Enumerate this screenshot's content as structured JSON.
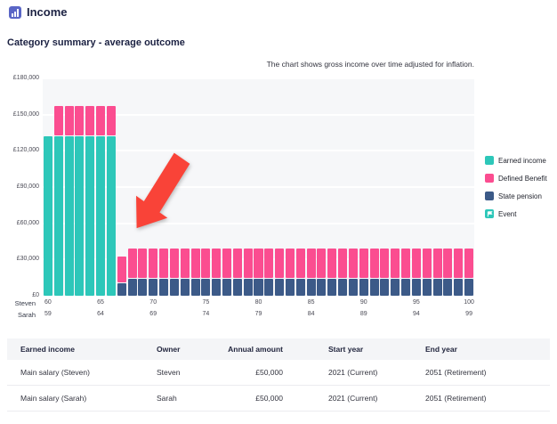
{
  "header": {
    "title": "Income"
  },
  "subtitle": "Category summary - average outcome",
  "chart": {
    "note": "The chart shows gross income over time adjusted for inflation."
  },
  "chart_data": {
    "type": "bar",
    "stacked": true,
    "title": "Category summary - average outcome",
    "ylim": [
      0,
      180000
    ],
    "ytick_step": 30000,
    "ytick_labels": [
      "£180,000",
      "£150,000",
      "£120,000",
      "£90,000",
      "£60,000",
      "£30,000",
      "£0"
    ],
    "grid": "horizontal-white-on-gray",
    "legend_position": "right",
    "x_primary_label": "Steven",
    "x_secondary_label": "Sarah",
    "ages_steven": [
      60,
      61,
      62,
      63,
      64,
      65,
      66,
      67,
      68,
      69,
      70,
      71,
      72,
      73,
      74,
      75,
      76,
      77,
      78,
      79,
      80,
      81,
      82,
      83,
      84,
      85,
      86,
      87,
      88,
      89,
      90,
      91,
      92,
      93,
      94,
      95,
      96,
      97,
      98,
      99,
      100
    ],
    "ages_sarah": [
      59,
      60,
      61,
      62,
      63,
      64,
      65,
      66,
      67,
      68,
      69,
      70,
      71,
      72,
      73,
      74,
      75,
      76,
      77,
      78,
      79,
      80,
      81,
      82,
      83,
      84,
      85,
      86,
      87,
      88,
      89,
      90,
      91,
      92,
      93,
      94,
      95,
      96,
      97,
      98,
      99
    ],
    "xticks_steven": [
      60,
      65,
      70,
      75,
      80,
      85,
      90,
      95,
      100
    ],
    "xticks_sarah": [
      59,
      64,
      69,
      74,
      79,
      84,
      89,
      94,
      99
    ],
    "series": [
      {
        "name": "Earned income",
        "color": "#2dc7b9",
        "values": [
          133000,
          133000,
          133000,
          133000,
          133000,
          133000,
          133000,
          0,
          0,
          0,
          0,
          0,
          0,
          0,
          0,
          0,
          0,
          0,
          0,
          0,
          0,
          0,
          0,
          0,
          0,
          0,
          0,
          0,
          0,
          0,
          0,
          0,
          0,
          0,
          0,
          0,
          0,
          0,
          0,
          0,
          0
        ]
      },
      {
        "name": "State pension",
        "color": "#3c5a88",
        "values": [
          0,
          0,
          0,
          0,
          0,
          0,
          0,
          11000,
          15000,
          15000,
          15000,
          15000,
          15000,
          15000,
          15000,
          15000,
          15000,
          15000,
          15000,
          15000,
          15000,
          15000,
          15000,
          15000,
          15000,
          15000,
          15000,
          15000,
          15000,
          15000,
          15000,
          15000,
          15000,
          15000,
          15000,
          15000,
          15000,
          15000,
          15000,
          15000,
          15000
        ]
      },
      {
        "name": "Defined Benefit",
        "color": "#fb4d90",
        "values": [
          0,
          25000,
          25000,
          25000,
          25000,
          25000,
          25000,
          22000,
          25000,
          25000,
          25000,
          25000,
          25000,
          25000,
          25000,
          25000,
          25000,
          25000,
          25000,
          25000,
          25000,
          25000,
          25000,
          25000,
          25000,
          25000,
          25000,
          25000,
          25000,
          25000,
          25000,
          25000,
          25000,
          25000,
          25000,
          25000,
          25000,
          25000,
          25000,
          25000,
          25000
        ]
      }
    ]
  },
  "legend": {
    "items": [
      {
        "label": "Earned income",
        "color": "#2dc7b9",
        "kind": "square"
      },
      {
        "label": "Defined Benefit",
        "color": "#fb4d90",
        "kind": "square"
      },
      {
        "label": "State pension",
        "color": "#3c5a88",
        "kind": "square"
      },
      {
        "label": "Event",
        "color": "#2dc7b9",
        "kind": "flag"
      }
    ]
  },
  "annotation": {
    "type": "red-arrow",
    "color": "#f94338",
    "points_at": "transition to retirement income at Steven age 67"
  },
  "table": {
    "headers": [
      "Earned income",
      "Owner",
      "Annual amount",
      "Start year",
      "End year"
    ],
    "rows": [
      [
        "Main salary (Steven)",
        "Steven",
        "£50,000",
        "2021 (Current)",
        "2051 (Retirement)"
      ],
      [
        "Main salary (Sarah)",
        "Sarah",
        "£50,000",
        "2021 (Current)",
        "2051 (Retirement)"
      ]
    ]
  }
}
